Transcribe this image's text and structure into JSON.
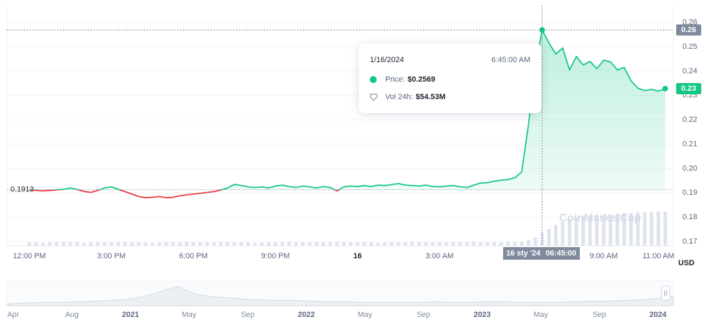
{
  "chart_data": {
    "type": "line",
    "categories": [
      "12:00 PM",
      null,
      null,
      null,
      null,
      null,
      null,
      null,
      null,
      null,
      null,
      null,
      "3:00 PM",
      null,
      null,
      null,
      null,
      null,
      null,
      null,
      null,
      null,
      null,
      null,
      "6:00 PM",
      null,
      null,
      null,
      null,
      null,
      null,
      null,
      null,
      null,
      null,
      null,
      "9:00 PM",
      null,
      null,
      null,
      null,
      null,
      null,
      null,
      null,
      null,
      null,
      null,
      "16",
      null,
      null,
      null,
      null,
      null,
      null,
      null,
      null,
      null,
      null,
      null,
      "3:00 AM",
      null,
      null,
      null,
      null,
      null,
      null,
      null,
      null,
      null,
      null,
      null,
      null,
      null,
      null,
      null,
      null,
      null,
      null,
      null,
      null,
      null,
      null,
      null,
      "9:00 AM",
      null,
      null,
      null,
      null,
      null,
      null,
      null,
      "11:00 AM",
      null
    ],
    "values": [
      0.1913,
      0.191,
      0.1908,
      0.191,
      0.1912,
      0.1915,
      0.192,
      0.1914,
      0.1906,
      0.1902,
      0.191,
      0.192,
      0.1925,
      0.1915,
      0.1905,
      0.1895,
      0.1885,
      0.188,
      0.1882,
      0.1885,
      0.188,
      0.1882,
      0.1888,
      0.1892,
      0.1895,
      0.1898,
      0.1902,
      0.1905,
      0.1912,
      0.192,
      0.1935,
      0.193,
      0.1925,
      0.1922,
      0.1925,
      0.192,
      0.1928,
      0.1932,
      0.1926,
      0.1922,
      0.1928,
      0.1925,
      0.192,
      0.1926,
      0.1922,
      0.1908,
      0.1925,
      0.1928,
      0.1926,
      0.193,
      0.1926,
      0.1932,
      0.193,
      0.1934,
      0.1938,
      0.1932,
      0.193,
      0.1928,
      0.1932,
      0.1926,
      0.1925,
      0.1928,
      0.193,
      0.1925,
      0.1922,
      0.1932,
      0.194,
      0.1942,
      0.1948,
      0.1952,
      0.1955,
      0.1962,
      0.1985,
      0.218,
      0.242,
      0.2569,
      0.2515,
      0.247,
      0.2495,
      0.2405,
      0.246,
      0.2425,
      0.244,
      0.241,
      0.2445,
      0.2438,
      0.2405,
      0.2415,
      0.236,
      0.233,
      0.232,
      0.2325,
      0.2318,
      0.2328
    ],
    "volume": [
      5,
      5,
      4,
      5,
      5,
      6,
      5,
      5,
      4,
      5,
      5,
      5,
      5,
      5,
      6,
      5,
      5,
      5,
      4,
      5,
      5,
      5,
      5,
      6,
      5,
      5,
      5,
      5,
      6,
      5,
      5,
      5,
      5,
      4,
      5,
      5,
      5,
      5,
      6,
      5,
      5,
      5,
      5,
      5,
      5,
      6,
      5,
      5,
      5,
      5,
      5,
      4,
      5,
      5,
      5,
      5,
      6,
      5,
      5,
      5,
      5,
      5,
      5,
      5,
      5,
      6,
      5,
      5,
      5,
      5,
      6,
      6,
      6,
      8,
      12,
      18,
      24,
      30,
      34,
      38,
      40,
      42,
      43,
      44,
      44,
      45,
      46,
      47,
      47,
      48,
      48,
      48,
      49,
      49
    ],
    "color_up": "#16c784",
    "color_down": "#ea3943",
    "baseline": 0.1913,
    "ylim": [
      0.1683,
      0.2669
    ],
    "yticks": [
      0.17,
      0.18,
      0.19,
      {
        "value": 0.2,
        "label": "0.20"
      },
      0.21,
      0.22,
      0.23,
      0.24,
      0.25,
      0.26
    ],
    "grid": true,
    "unit": "USD",
    "last_label": "0.23",
    "watermark": "CoinMarketCap",
    "crosshair": {
      "y_label": "0.26",
      "x_date": "16 sty '24",
      "x_time": "06:45:00"
    },
    "tooltip": {
      "date": "1/16/2024",
      "time": "6:45:00 AM",
      "price_label": "Price:",
      "price": "$0.2569",
      "vol_label": "Vol 24h:",
      "vol": "$54.53M"
    },
    "navigator": {
      "labels": [
        "Apr",
        "Aug",
        "2021",
        "May",
        "Sep",
        "2022",
        "May",
        "Sep",
        "2023",
        "May",
        "Sep",
        "2024"
      ],
      "values": [
        3,
        4,
        5,
        5,
        6,
        7,
        8,
        10,
        14,
        22,
        30,
        18,
        14,
        12,
        10,
        9,
        8,
        8,
        7,
        6,
        6,
        5,
        5,
        5,
        5,
        6,
        5,
        5,
        6,
        6,
        5,
        5,
        5,
        6,
        7,
        7,
        8,
        9,
        11,
        14
      ]
    }
  }
}
